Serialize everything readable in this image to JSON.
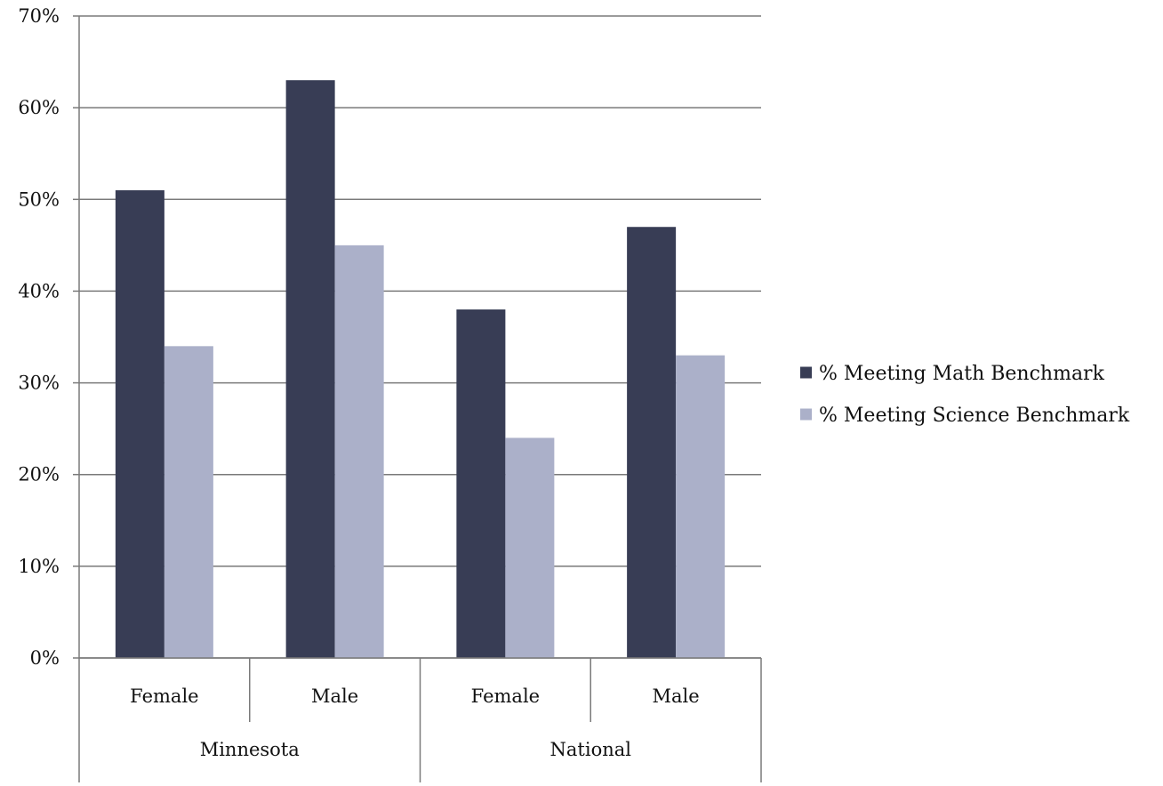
{
  "chart_data": {
    "type": "bar",
    "groups": [
      {
        "label": "Minnesota",
        "categories": [
          "Female",
          "Male"
        ]
      },
      {
        "label": "National",
        "categories": [
          "Female",
          "Male"
        ]
      }
    ],
    "categories": [
      "Female",
      "Male",
      "Female",
      "Male"
    ],
    "series": [
      {
        "name": "% Meeting Math Benchmark",
        "color": "#383d55",
        "values": [
          51,
          63,
          38,
          47
        ]
      },
      {
        "name": "% Meeting Science Benchmark",
        "color": "#abb0c9",
        "values": [
          34,
          45,
          24,
          33
        ]
      }
    ],
    "ylim": [
      0,
      70
    ],
    "yticks": [
      "0%",
      "10%",
      "20%",
      "30%",
      "40%",
      "50%",
      "60%",
      "70%"
    ],
    "grid": true,
    "legend_position": "right",
    "title": "",
    "xlabel": "",
    "ylabel": ""
  }
}
